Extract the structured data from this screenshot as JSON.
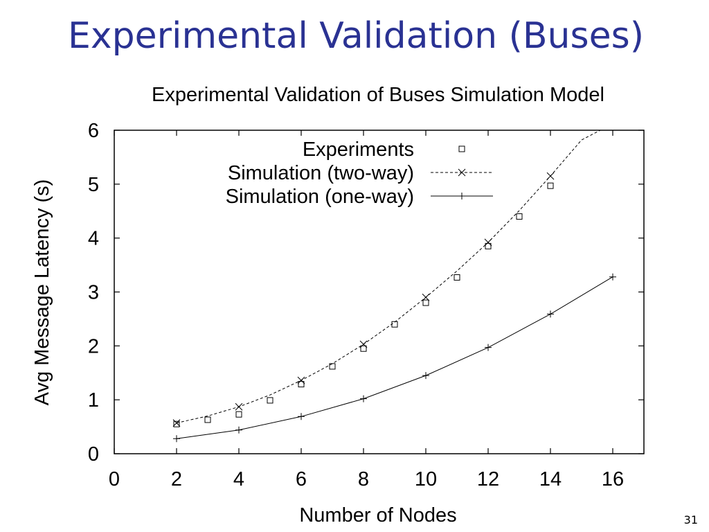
{
  "slide": {
    "title": "Experimental Validation (Buses)",
    "page_number": "31",
    "title_color": "#2a3293"
  },
  "chart_data": {
    "type": "line",
    "title": "Experimental Validation of Buses Simulation Model",
    "xlabel": "Number of Nodes",
    "ylabel": "Avg Message Latency (s)",
    "xlim": [
      0,
      17
    ],
    "ylim": [
      0,
      6
    ],
    "xticks": [
      0,
      2,
      4,
      6,
      8,
      10,
      12,
      14,
      16
    ],
    "yticks": [
      0,
      1,
      2,
      3,
      4,
      5,
      6
    ],
    "grid": false,
    "legend_position": "top-right",
    "series": [
      {
        "name": "Experiments",
        "style": "points",
        "marker": "square",
        "x": [
          2,
          3,
          4,
          5,
          6,
          7,
          8,
          9,
          10,
          11,
          12,
          13,
          14
        ],
        "y": [
          0.55,
          0.63,
          0.73,
          0.99,
          1.29,
          1.62,
          1.95,
          2.4,
          2.8,
          3.27,
          3.85,
          4.4,
          4.97
        ]
      },
      {
        "name": "Simulation (two-way)",
        "style": "dashed",
        "marker": "x",
        "x": [
          2,
          4,
          6,
          8,
          10,
          12,
          14
        ],
        "y": [
          0.57,
          0.87,
          1.36,
          2.03,
          2.9,
          3.92,
          5.15
        ],
        "curve_x": [
          2,
          3,
          4,
          5,
          6,
          7,
          8,
          9,
          10,
          11,
          12,
          13,
          14,
          15,
          15.6
        ],
        "curve_y": [
          0.57,
          0.7,
          0.87,
          1.09,
          1.36,
          1.67,
          2.03,
          2.44,
          2.9,
          3.39,
          3.92,
          4.51,
          5.15,
          5.82,
          6.0
        ]
      },
      {
        "name": "Simulation (one-way)",
        "style": "solid",
        "marker": "plus",
        "x": [
          2,
          4,
          6,
          8,
          10,
          12,
          14,
          16
        ],
        "y": [
          0.28,
          0.44,
          0.69,
          1.02,
          1.45,
          1.97,
          2.59,
          3.28
        ]
      }
    ]
  }
}
